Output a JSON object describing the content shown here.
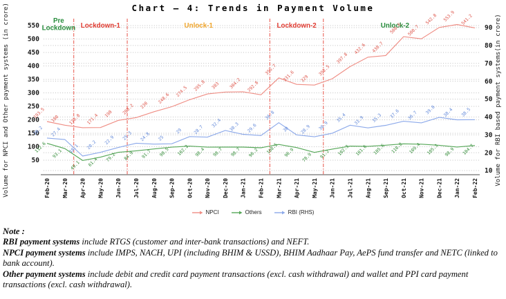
{
  "chart_data": {
    "type": "line",
    "title": "Chart – 4: Trends in Payment Volume",
    "x": [
      "Feb-20",
      "Mar-20",
      "Apr-20",
      "May-20",
      "Jun-20",
      "Jul-20",
      "Aug-20",
      "Sep-20",
      "Oct-20",
      "Nov-20",
      "Dec-20",
      "Jan-21",
      "Feb-21",
      "Mar-21",
      "Apr-21",
      "May-21",
      "Jun-21",
      "Jul-21",
      "Aug-21",
      "Sep-21",
      "Oct-21",
      "Nov-21",
      "Dec-21",
      "Jan-22",
      "Feb-22"
    ],
    "series": [
      {
        "name": "NPCI",
        "axis": "left",
        "color": "#ef8d84",
        "label_color": "#dd5348",
        "values": [
          193.5,
          180,
          170.8,
          171.4,
          198,
          208.2,
          230,
          248.6,
          274.5,
          295.8,
          303,
          304.2,
          292.8,
          355.7,
          331.6,
          329,
          352.5,
          397.8,
          432.6,
          438.7,
          508.6,
          500.7,
          542.8,
          553.9,
          541.2
        ]
      },
      {
        "name": "Others",
        "axis": "left",
        "color": "#55a757",
        "label_color": "#2f8a34",
        "values": [
          112.6,
          93.1,
          49.1,
          61.4,
          79.2,
          84.9,
          91.7,
          98.5,
          102.2,
          98.4,
          98.7,
          98.7,
          96.2,
          108.5,
          96.9,
          78.9,
          91.2,
          102.3,
          101.6,
          105.6,
          110.8,
          109.4,
          105.3,
          98.9,
          104.7
        ]
      },
      {
        "name": "RBI (RHS)",
        "axis": "right",
        "color": "#8ca9ea",
        "label_color": "#5f86d8",
        "values": [
          28.2,
          27.4,
          18.1,
          20.2,
          22.9,
          25.3,
          24.8,
          25,
          29,
          28.7,
          32.4,
          30.3,
          29.6,
          36.8,
          30,
          28.9,
          30.9,
          35.4,
          33.9,
          35.3,
          37.6,
          36.7,
          39.8,
          38.4,
          38.5
        ]
      }
    ],
    "left_axis": {
      "label": "Volume for NPCI and Other payment systems (in crore)",
      "ticks": [
        50,
        100,
        150,
        200,
        250,
        300,
        350,
        400,
        450,
        500,
        550
      ]
    },
    "right_axis": {
      "label": "Volume for RBI based payment systems(in crore)",
      "ticks": [
        10,
        20,
        30,
        40,
        50,
        60,
        70,
        80,
        90
      ]
    },
    "grid": "dotted, both axes",
    "legend_position": "bottom center",
    "phases": [
      {
        "label": "Pre Lockdown",
        "color": "#278c3c",
        "two_line": true
      },
      {
        "label": "Lockdown-1",
        "color": "#e03a30",
        "two_line": false
      },
      {
        "label": "Unlock-1",
        "color": "#efa42a",
        "two_line": false
      },
      {
        "label": "Lockdown-2",
        "color": "#e03a30",
        "two_line": false
      },
      {
        "label": "Unlock-2",
        "color": "#278c3c",
        "two_line": false
      }
    ],
    "dividers_between_months": [
      [
        "Mar-20",
        "Apr-20"
      ],
      [
        "Jun-20",
        "Jul-20"
      ],
      [
        "Feb-21",
        "Mar-21"
      ],
      [
        "May-21",
        "Jun-21"
      ]
    ]
  },
  "note": {
    "heading": "Note :",
    "lines": [
      [
        {
          "b": "RBI payment systems"
        },
        {
          "t": " include RTGS (customer and inter-bank transactions) and NEFT."
        }
      ],
      [
        {
          "b": "NPCI payment systems"
        },
        {
          "t": " include IMPS, NACH, UPI (including BHIM & USSD), BHIM Aadhaar Pay, AePS fund transfer and NETC (linked to bank account)."
        }
      ],
      [
        {
          "b": "Other payment systems"
        },
        {
          "t": " include debit and credit card payment transactions (excl. cash withdrawal) and wallet and PPI card payment transactions (excl. cash withdrawal)."
        }
      ]
    ]
  }
}
